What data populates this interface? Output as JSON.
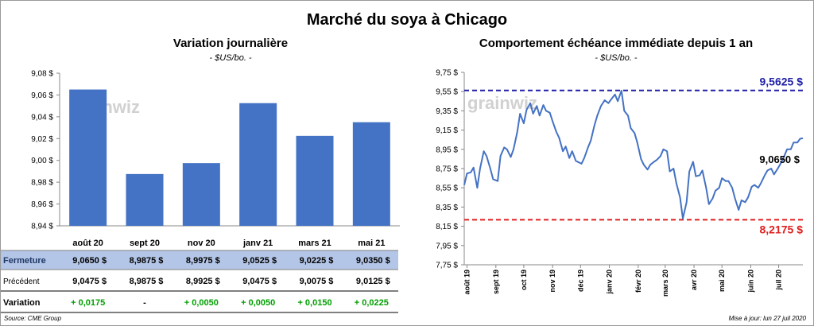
{
  "title": "Marché du soya à Chicago",
  "left": {
    "subtitle": "Variation journalière",
    "unit": "- $US/bo. -"
  },
  "right": {
    "subtitle": "Comportement  échéance immédiate depuis 1 an",
    "unit": "- $US/bo. -"
  },
  "watermark": "grainwiz",
  "table": {
    "rows": [
      {
        "label": "Fermeture",
        "values": [
          "9,0650  $",
          "8,9875  $",
          "8,9975  $",
          "9,0525  $",
          "9,0225  $",
          "9,0350  $"
        ]
      },
      {
        "label": "Précédent",
        "values": [
          "9,0475  $",
          "8,9875  $",
          "8,9925  $",
          "9,0475  $",
          "9,0075  $",
          "9,0125  $"
        ]
      },
      {
        "label": "Variation",
        "values": [
          "+ 0,0175",
          "-",
          "+ 0,0050",
          "+ 0,0050",
          "+ 0,0150",
          "+ 0,0225"
        ]
      }
    ]
  },
  "footer": {
    "source": "Source: CME Group",
    "updated": "Mise à jour: lun 27 juil 2020"
  },
  "colors": {
    "bar": "#4472c4",
    "line": "#4472c4",
    "fermeture_band": "#b4c6e7",
    "positive": "#00a000",
    "high_line": "#1f1fa8",
    "low_line": "#e02020"
  },
  "chart_data": [
    {
      "type": "bar",
      "categories": [
        "août 20",
        "sept 20",
        "nov 20",
        "janv 21",
        "mars 21",
        "mai 21"
      ],
      "values": [
        9.065,
        8.9875,
        8.9975,
        9.0525,
        9.0225,
        9.035
      ],
      "ylim": [
        8.94,
        9.08
      ],
      "yticks": [
        "8,94 $",
        "8,96 $",
        "8,98 $",
        "9,00 $",
        "9,02 $",
        "9,04 $",
        "9,06 $",
        "9,08 $"
      ],
      "grid": false
    },
    {
      "type": "line",
      "x_start": "2019-07-29",
      "x_end": "2020-07-27",
      "xticks": [
        {
          "label": "août 19",
          "date": "2019-08-01"
        },
        {
          "label": "sept 19",
          "date": "2019-09-01"
        },
        {
          "label": "oct 19",
          "date": "2019-10-01"
        },
        {
          "label": "nov 19",
          "date": "2019-11-01"
        },
        {
          "label": "déc 19",
          "date": "2019-12-01"
        },
        {
          "label": "janv 20",
          "date": "2020-01-01"
        },
        {
          "label": "févr 20",
          "date": "2020-02-01"
        },
        {
          "label": "mars 20",
          "date": "2020-03-01"
        },
        {
          "label": "avr 20",
          "date": "2020-04-01"
        },
        {
          "label": "mai 20",
          "date": "2020-05-01"
        },
        {
          "label": "juin 20",
          "date": "2020-06-01"
        },
        {
          "label": "juil 20",
          "date": "2020-07-01"
        }
      ],
      "yticks": [
        "7,75 $",
        "7,95 $",
        "8,15 $",
        "8,35 $",
        "8,55 $",
        "8,75 $",
        "8,95 $",
        "9,15 $",
        "9,35 $",
        "9,55 $",
        "9,75 $"
      ],
      "ylim": [
        7.75,
        9.75
      ],
      "series": [
        {
          "points": [
            [
              "2019-07-29",
              8.58
            ],
            [
              "2019-08-01",
              8.7
            ],
            [
              "2019-08-05",
              8.71
            ],
            [
              "2019-08-08",
              8.76
            ],
            [
              "2019-08-12",
              8.55
            ],
            [
              "2019-08-15",
              8.75
            ],
            [
              "2019-08-19",
              8.93
            ],
            [
              "2019-08-22",
              8.88
            ],
            [
              "2019-08-26",
              8.75
            ],
            [
              "2019-08-29",
              8.64
            ],
            [
              "2019-09-03",
              8.62
            ],
            [
              "2019-09-06",
              8.88
            ],
            [
              "2019-09-10",
              8.97
            ],
            [
              "2019-09-13",
              8.95
            ],
            [
              "2019-09-17",
              8.87
            ],
            [
              "2019-09-20",
              8.95
            ],
            [
              "2019-09-24",
              9.13
            ],
            [
              "2019-09-27",
              9.32
            ],
            [
              "2019-10-01",
              9.22
            ],
            [
              "2019-10-04",
              9.36
            ],
            [
              "2019-10-08",
              9.43
            ],
            [
              "2019-10-11",
              9.32
            ],
            [
              "2019-10-15",
              9.4
            ],
            [
              "2019-10-18",
              9.3
            ],
            [
              "2019-10-22",
              9.41
            ],
            [
              "2019-10-25",
              9.35
            ],
            [
              "2019-10-29",
              9.33
            ],
            [
              "2019-11-01",
              9.24
            ],
            [
              "2019-11-05",
              9.13
            ],
            [
              "2019-11-08",
              9.07
            ],
            [
              "2019-11-12",
              8.93
            ],
            [
              "2019-11-15",
              8.98
            ],
            [
              "2019-11-19",
              8.86
            ],
            [
              "2019-11-22",
              8.93
            ],
            [
              "2019-11-26",
              8.83
            ],
            [
              "2019-12-02",
              8.8
            ],
            [
              "2019-12-05",
              8.86
            ],
            [
              "2019-12-09",
              8.97
            ],
            [
              "2019-12-12",
              9.04
            ],
            [
              "2019-12-16",
              9.2
            ],
            [
              "2019-12-19",
              9.3
            ],
            [
              "2019-12-23",
              9.4
            ],
            [
              "2019-12-27",
              9.46
            ],
            [
              "2019-12-31",
              9.43
            ],
            [
              "2020-01-03",
              9.47
            ],
            [
              "2020-01-07",
              9.52
            ],
            [
              "2020-01-10",
              9.45
            ],
            [
              "2020-01-14",
              9.56
            ],
            [
              "2020-01-17",
              9.35
            ],
            [
              "2020-01-21",
              9.3
            ],
            [
              "2020-01-24",
              9.17
            ],
            [
              "2020-01-28",
              9.12
            ],
            [
              "2020-01-31",
              9.02
            ],
            [
              "2020-02-04",
              8.85
            ],
            [
              "2020-02-07",
              8.79
            ],
            [
              "2020-02-11",
              8.74
            ],
            [
              "2020-02-14",
              8.79
            ],
            [
              "2020-02-18",
              8.82
            ],
            [
              "2020-02-21",
              8.84
            ],
            [
              "2020-02-25",
              8.88
            ],
            [
              "2020-02-28",
              8.95
            ],
            [
              "2020-03-03",
              8.93
            ],
            [
              "2020-03-06",
              8.72
            ],
            [
              "2020-03-10",
              8.75
            ],
            [
              "2020-03-13",
              8.6
            ],
            [
              "2020-03-17",
              8.45
            ],
            [
              "2020-03-20",
              8.23
            ],
            [
              "2020-03-24",
              8.4
            ],
            [
              "2020-03-27",
              8.72
            ],
            [
              "2020-03-31",
              8.82
            ],
            [
              "2020-04-03",
              8.67
            ],
            [
              "2020-04-07",
              8.68
            ],
            [
              "2020-04-10",
              8.73
            ],
            [
              "2020-04-14",
              8.55
            ],
            [
              "2020-04-17",
              8.38
            ],
            [
              "2020-04-21",
              8.44
            ],
            [
              "2020-04-24",
              8.52
            ],
            [
              "2020-04-28",
              8.55
            ],
            [
              "2020-05-01",
              8.65
            ],
            [
              "2020-05-05",
              8.62
            ],
            [
              "2020-05-08",
              8.62
            ],
            [
              "2020-05-12",
              8.55
            ],
            [
              "2020-05-15",
              8.44
            ],
            [
              "2020-05-19",
              8.32
            ],
            [
              "2020-05-22",
              8.42
            ],
            [
              "2020-05-26",
              8.4
            ],
            [
              "2020-05-29",
              8.45
            ],
            [
              "2020-06-02",
              8.56
            ],
            [
              "2020-06-05",
              8.58
            ],
            [
              "2020-06-09",
              8.55
            ],
            [
              "2020-06-12",
              8.6
            ],
            [
              "2020-06-16",
              8.68
            ],
            [
              "2020-06-19",
              8.73
            ],
            [
              "2020-06-23",
              8.75
            ],
            [
              "2020-06-26",
              8.69
            ],
            [
              "2020-06-30",
              8.75
            ],
            [
              "2020-07-03",
              8.8
            ],
            [
              "2020-07-07",
              8.88
            ],
            [
              "2020-07-10",
              8.95
            ],
            [
              "2020-07-14",
              8.95
            ],
            [
              "2020-07-17",
              9.02
            ],
            [
              "2020-07-21",
              9.02
            ],
            [
              "2020-07-24",
              9.06
            ],
            [
              "2020-07-27",
              9.065
            ]
          ]
        }
      ],
      "annotations": {
        "high": {
          "value": 9.5625,
          "label": "9,5625  $"
        },
        "low": {
          "value": 8.2175,
          "label": "8,2175  $"
        },
        "last": {
          "value": 9.065,
          "label": "9,0650 $"
        }
      }
    }
  ]
}
